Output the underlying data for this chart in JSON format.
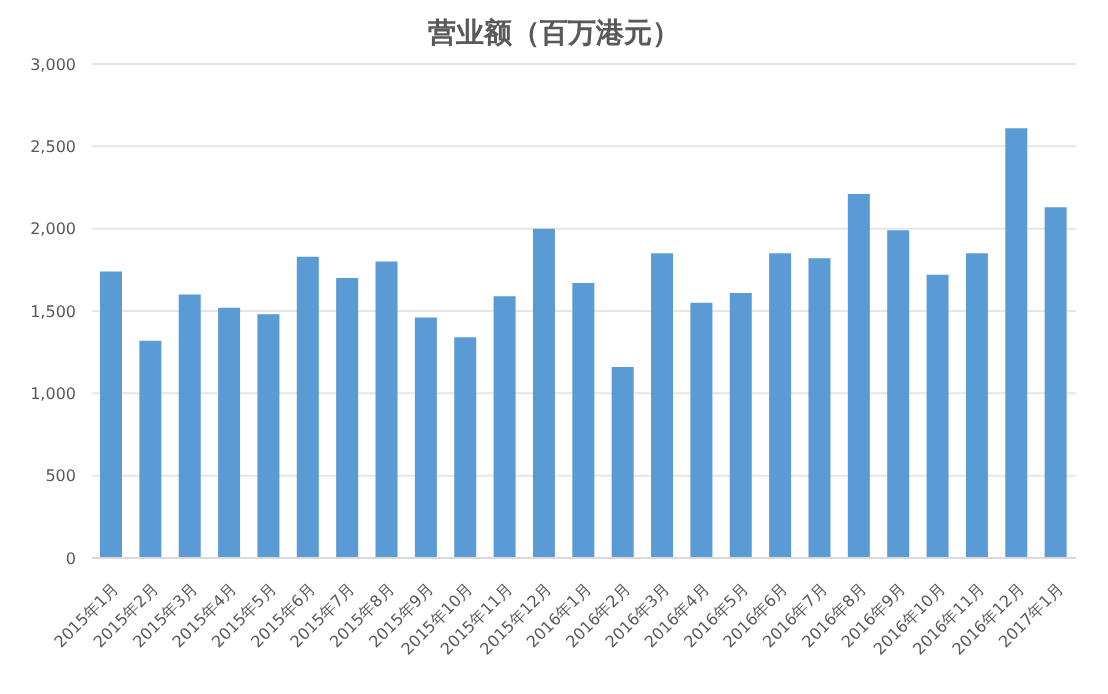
{
  "chart_data": {
    "type": "bar",
    "title": "营业额（百万港元）",
    "categories": [
      "2015年1月",
      "2015年2月",
      "2015年3月",
      "2015年4月",
      "2015年5月",
      "2015年6月",
      "2015年7月",
      "2015年8月",
      "2015年9月",
      "2015年10月",
      "2015年11月",
      "2015年12月",
      "2016年1月",
      "2016年2月",
      "2016年3月",
      "2016年4月",
      "2016年5月",
      "2016年6月",
      "2016年7月",
      "2016年8月",
      "2016年9月",
      "2016年10月",
      "2016年11月",
      "2016年12月",
      "2017年1月"
    ],
    "values": [
      1740,
      1320,
      1600,
      1520,
      1480,
      1830,
      1700,
      1800,
      1460,
      1340,
      1590,
      2000,
      1670,
      1160,
      1850,
      1550,
      1610,
      1850,
      1820,
      2210,
      1990,
      1720,
      1850,
      2610,
      2130
    ],
    "color": "#5b9bd5",
    "ylim": [
      0,
      3000
    ],
    "yticks": [
      {
        "value": 0,
        "label": "0"
      },
      {
        "value": 500,
        "label": "500"
      },
      {
        "value": 1000,
        "label": "1,000"
      },
      {
        "value": 1500,
        "label": "1,500"
      },
      {
        "value": 2000,
        "label": "2,000"
      },
      {
        "value": 2500,
        "label": "2,500"
      },
      {
        "value": 3000,
        "label": "3,000"
      }
    ],
    "grid": "y",
    "legend": false
  }
}
